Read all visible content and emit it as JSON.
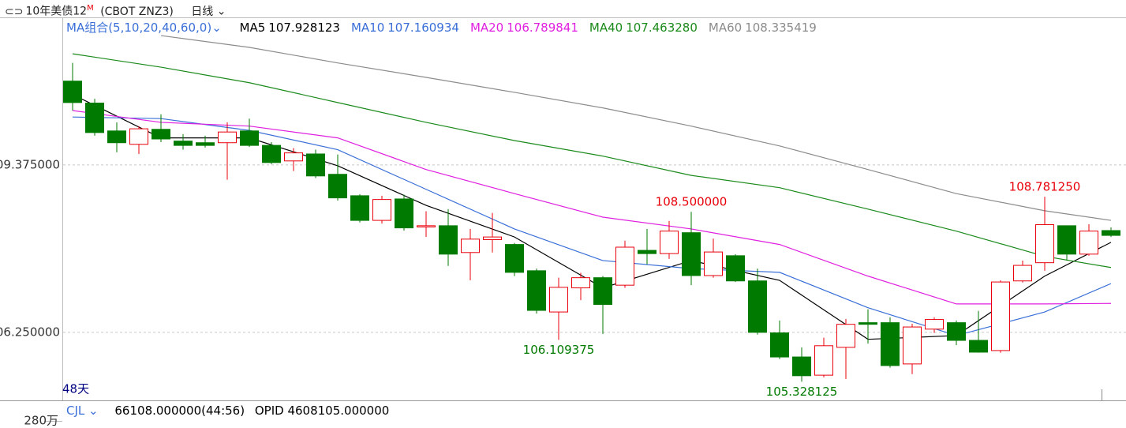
{
  "toolbar": {
    "symbol": "10年美债12",
    "symbol_mark": "M",
    "code": "(CBOT ZNZ3)",
    "period": "日线"
  },
  "chart_data": {
    "type": "candlestick",
    "indicator_label": "MA组合(5,10,20,40,60,0)",
    "days_label": "48天",
    "ylim": [
      104.98,
      112.13
    ],
    "yticks": [
      {
        "value": 109.375,
        "label": "109.375000"
      },
      {
        "value": 106.25,
        "label": "106.250000"
      }
    ],
    "grid": true,
    "up_color": "#e8000b",
    "down_color": "#007a00",
    "open": [
      110.94,
      110.53,
      110.01,
      109.76,
      110.04,
      109.82,
      109.79,
      109.79,
      110.01,
      109.74,
      109.45,
      109.58,
      109.2,
      108.8,
      108.34,
      108.74,
      108.23,
      108.24,
      107.74,
      107.98,
      107.89,
      107.4,
      106.63,
      107.08,
      107.27,
      107.13,
      107.78,
      107.72,
      108.11,
      107.31,
      107.68,
      107.21,
      106.24,
      105.79,
      105.45,
      105.97,
      106.43,
      106.43,
      105.66,
      106.31,
      106.43,
      106.1,
      105.91,
      107.21,
      107.55,
      108.24,
      107.71,
      108.15
    ],
    "high": [
      111.28,
      110.61,
      110.17,
      110.1,
      110.32,
      109.95,
      109.92,
      110.17,
      110.24,
      109.8,
      109.69,
      109.66,
      109.57,
      108.83,
      108.8,
      108.82,
      108.51,
      108.55,
      108.18,
      108.48,
      107.92,
      107.44,
      107.27,
      107.36,
      107.3,
      107.96,
      108.18,
      108.33,
      108.5,
      108.0,
      107.71,
      107.44,
      106.47,
      105.97,
      106.15,
      106.5,
      106.68,
      106.53,
      106.41,
      106.53,
      106.47,
      106.65,
      107.22,
      107.59,
      108.78125,
      108.24,
      108.27,
      108.21
    ],
    "low": [
      110.39,
      109.92,
      109.61,
      109.58,
      109.8,
      109.66,
      109.7,
      109.1,
      109.71,
      109.39,
      109.26,
      109.13,
      108.71,
      108.3,
      108.28,
      108.15,
      108.03,
      107.49,
      107.22,
      107.74,
      107.3,
      106.6,
      106.109375,
      106.85,
      106.22,
      107.08,
      107.52,
      107.62,
      107.13,
      107.27,
      107.19,
      106.21,
      105.75,
      105.328125,
      105.41,
      105.38,
      106.04,
      105.59,
      105.47,
      106.24,
      106.01,
      105.87,
      105.87,
      107.18,
      107.4,
      107.59,
      107.68,
      108.03
    ],
    "close": [
      110.54,
      109.98,
      109.79,
      110.05,
      109.86,
      109.74,
      109.74,
      109.99,
      109.74,
      109.42,
      109.6,
      109.17,
      108.76,
      108.34,
      108.73,
      108.2,
      108.24,
      107.71,
      107.99,
      108.03,
      107.37,
      106.66,
      107.09,
      107.27,
      106.77,
      107.84,
      107.72,
      108.14,
      107.31,
      107.75,
      107.21,
      106.25,
      105.79,
      105.44,
      106.0,
      106.4,
      106.4,
      105.63,
      106.35,
      106.49,
      106.1,
      105.88,
      107.19,
      107.5,
      108.26,
      107.71,
      108.14,
      108.06
    ],
    "annotations": [
      {
        "label": "108.500000",
        "value": 108.5,
        "color": "#e8000b"
      },
      {
        "label": "108.781250",
        "value": 108.78125,
        "color": "#e8000b"
      },
      {
        "label": "106.109375",
        "value": 106.109375,
        "color": "#007a00"
      },
      {
        "label": "105.328125",
        "value": 105.328125,
        "color": "#007a00"
      }
    ],
    "series": [
      {
        "name": "MA5",
        "current": "107.928123",
        "color": "#000000",
        "x": [
          0,
          4,
          8,
          12,
          16,
          20,
          24,
          28,
          32,
          36,
          40,
          44,
          47
        ],
        "values": [
          110.69,
          109.88,
          109.88,
          109.36,
          108.62,
          108.03,
          107.08,
          107.59,
          107.22,
          106.12,
          106.19,
          107.3,
          107.93
        ]
      },
      {
        "name": "MA10",
        "current": "107.160934",
        "color": "#3a6fd8",
        "x": [
          0,
          4,
          8,
          12,
          16,
          20,
          24,
          28,
          32,
          36,
          40,
          44,
          47
        ],
        "values": [
          110.27,
          110.24,
          110.02,
          109.66,
          108.92,
          108.18,
          107.59,
          107.44,
          107.37,
          106.71,
          106.19,
          106.63,
          107.16
        ]
      },
      {
        "name": "MA20",
        "current": "106.789841",
        "color": "#e020e0",
        "x": [
          0,
          4,
          8,
          12,
          16,
          20,
          24,
          28,
          32,
          36,
          40,
          44,
          47
        ],
        "values": [
          110.39,
          110.17,
          110.1,
          109.88,
          109.29,
          108.84,
          108.4,
          108.18,
          107.89,
          107.3,
          106.78,
          106.78,
          106.79
        ]
      },
      {
        "name": "MA40",
        "current": "107.463280",
        "color": "#1a8a1a",
        "x": [
          0,
          4,
          8,
          12,
          16,
          20,
          24,
          28,
          32,
          36,
          40,
          44,
          47
        ],
        "values": [
          111.45,
          111.2,
          110.91,
          110.54,
          110.17,
          109.83,
          109.54,
          109.18,
          108.95,
          108.55,
          108.14,
          107.67,
          107.46
        ]
      },
      {
        "name": "MA60",
        "current": "108.335419",
        "color": "#8c8c8c",
        "x": [
          4,
          8,
          12,
          16,
          20,
          24,
          28,
          32,
          36,
          40,
          44,
          47
        ],
        "values": [
          111.79,
          111.57,
          111.28,
          111.01,
          110.73,
          110.44,
          110.1,
          109.73,
          109.29,
          108.84,
          108.52,
          108.34
        ]
      }
    ]
  },
  "volume_panel": {
    "name": "CJL",
    "volume": "66108.000000(44:56)",
    "opid_label": "OPID",
    "opid": "4608105.000000",
    "ytick": "280万"
  }
}
